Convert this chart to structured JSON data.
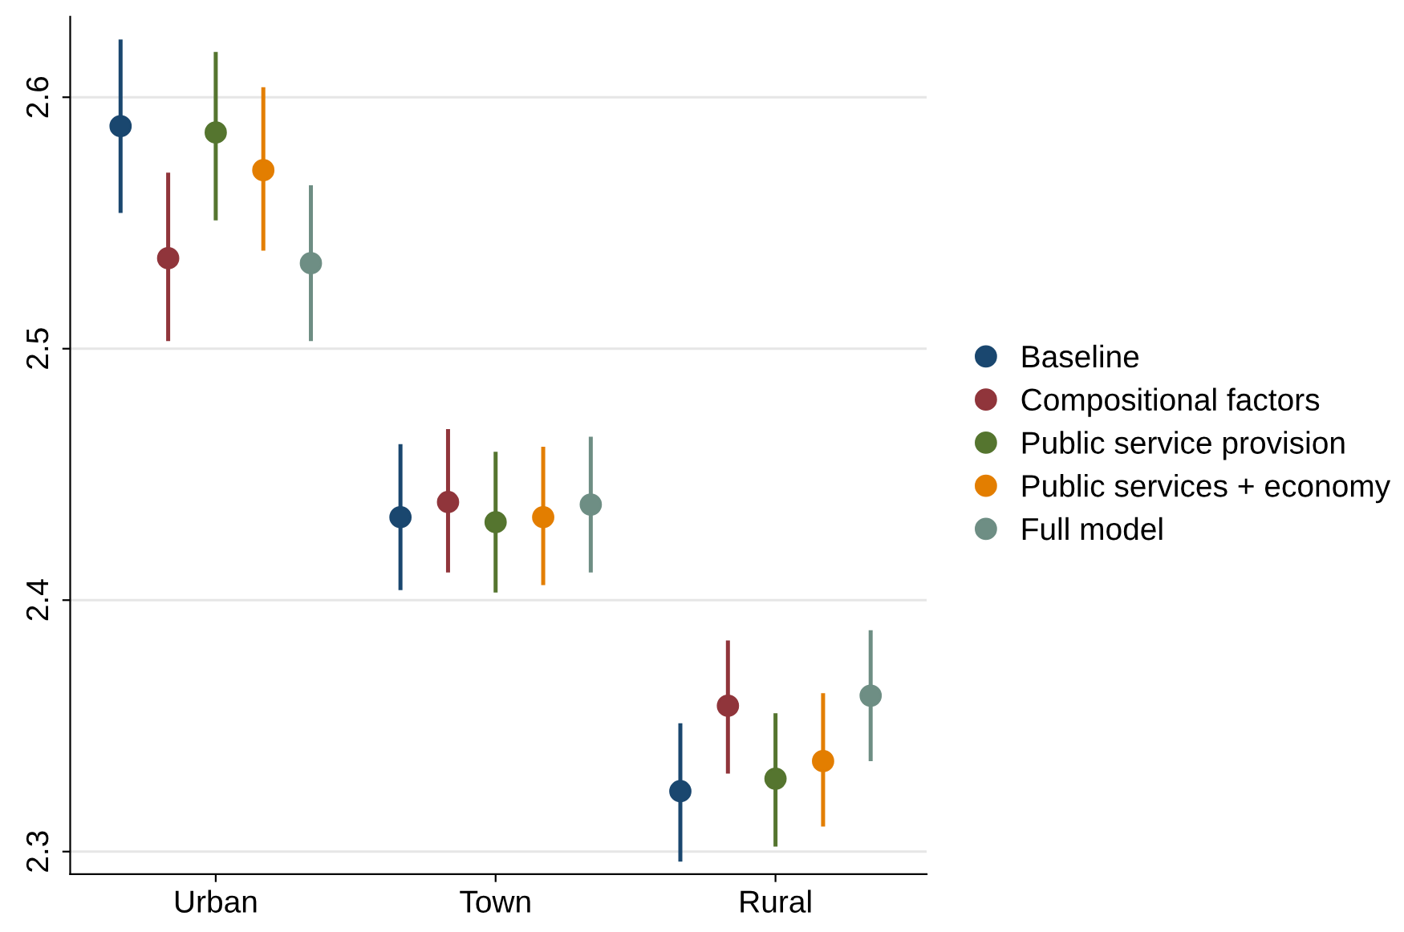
{
  "chart_data": {
    "type": "scatter",
    "categories": [
      "Urban",
      "Town",
      "Rural"
    ],
    "series": [
      {
        "name": "Baseline",
        "color": "#1a476f",
        "values": [
          2.5885,
          2.433,
          2.324
        ],
        "errors": [
          [
            2.554,
            2.623
          ],
          [
            2.404,
            2.462
          ],
          [
            2.296,
            2.351
          ]
        ]
      },
      {
        "name": "Compositional factors",
        "color": "#90353b",
        "values": [
          2.536,
          2.439,
          2.358
        ],
        "errors": [
          [
            2.503,
            2.57
          ],
          [
            2.411,
            2.468
          ],
          [
            2.331,
            2.384
          ]
        ]
      },
      {
        "name": "Public service provision",
        "color": "#55752f",
        "values": [
          2.586,
          2.431,
          2.329
        ],
        "errors": [
          [
            2.551,
            2.618
          ],
          [
            2.403,
            2.459
          ],
          [
            2.302,
            2.355
          ]
        ]
      },
      {
        "name": "Public services + economy",
        "color": "#e37e00",
        "values": [
          2.571,
          2.433,
          2.336
        ],
        "errors": [
          [
            2.539,
            2.604
          ],
          [
            2.406,
            2.461
          ],
          [
            2.31,
            2.363
          ]
        ]
      },
      {
        "name": "Full model",
        "color": "#6e8e84",
        "values": [
          2.534,
          2.438,
          2.362
        ],
        "errors": [
          [
            2.503,
            2.565
          ],
          [
            2.411,
            2.465
          ],
          [
            2.336,
            2.388
          ]
        ]
      }
    ],
    "ylim": [
      2.291,
      2.632
    ],
    "yticks": [
      2.3,
      2.4,
      2.5,
      2.6
    ],
    "grid": "y",
    "legend": "right",
    "marker": "circle"
  }
}
